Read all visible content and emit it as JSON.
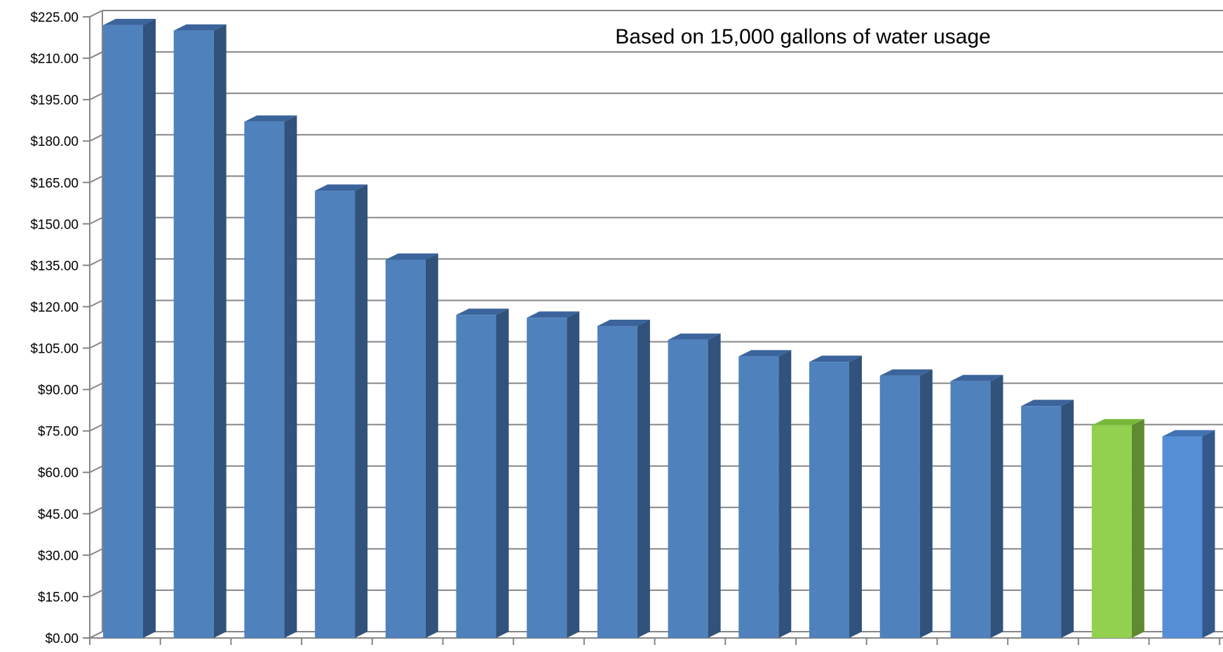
{
  "chart_data": {
    "type": "bar",
    "title": "",
    "xlabel": "",
    "ylabel": "",
    "annotation": "Based on 15,000 gallons of water usage",
    "categories": [
      "",
      "",
      "",
      "",
      "",
      "",
      "",
      "",
      "",
      "",
      "",
      "",
      "",
      "",
      "",
      ""
    ],
    "values": [
      222,
      220,
      187,
      162,
      137,
      117,
      116,
      113,
      108,
      102,
      100,
      95,
      93,
      84,
      77,
      73
    ],
    "ylim": [
      0,
      225
    ],
    "y_tick_step": 15,
    "y_tick_labels": [
      "$0.00",
      "$15.00",
      "$30.00",
      "$45.00",
      "$60.00",
      "$75.00",
      "$90.00",
      "$105.00",
      "$120.00",
      "$135.00",
      "$150.00",
      "$165.00",
      "$180.00",
      "$195.00",
      "$210.00",
      "$225.00"
    ],
    "grid": true,
    "legend": "none",
    "colors": {
      "bar_front": "#4f81bd",
      "bar_side": "#31527a",
      "bar_top": "#3b649c",
      "highlight_front": "#92d050",
      "highlight_side": "#5e8a30",
      "highlight_top": "#78b83a",
      "last_front": "#558ed5",
      "last_side": "#33598a",
      "last_top": "#4072b4",
      "gridline": "#868686",
      "axis": "#868686"
    },
    "highlight_index": 14,
    "last_index": 15
  }
}
